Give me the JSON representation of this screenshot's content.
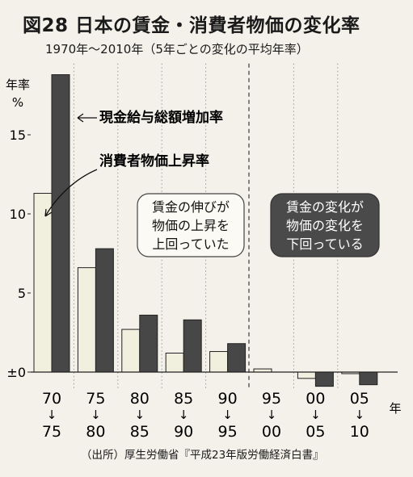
{
  "header": {
    "title": "図28 日本の賃金・消費者物価の変化率",
    "subtitle": "1970年〜2010年（5年ごとの変化の平均年率）"
  },
  "source": "（出所）厚生労働省『平成23年版労働経済白書』",
  "chart_data": {
    "type": "bar",
    "y_axis_title": [
      "年率",
      "%"
    ],
    "x_axis_unit": "年",
    "categories": [
      {
        "from": "70",
        "arrow": "↓",
        "to": "75"
      },
      {
        "from": "75",
        "arrow": "↓",
        "to": "80"
      },
      {
        "from": "80",
        "arrow": "↓",
        "to": "85"
      },
      {
        "from": "85",
        "arrow": "↓",
        "to": "90"
      },
      {
        "from": "90",
        "arrow": "↓",
        "to": "95"
      },
      {
        "from": "95",
        "arrow": "↓",
        "to": "00"
      },
      {
        "from": "00",
        "arrow": "↓",
        "to": "05"
      },
      {
        "from": "05",
        "arrow": "↓",
        "to": "10"
      }
    ],
    "series": [
      {
        "name": "消費者物価上昇率",
        "color": "#f1efde",
        "values": [
          11.3,
          6.6,
          2.7,
          1.2,
          1.3,
          0.2,
          -0.4,
          -0.1
        ]
      },
      {
        "name": "現金給与総額増加率",
        "color": "#474747",
        "values": [
          18.8,
          7.8,
          3.6,
          3.3,
          1.8,
          0.0,
          -0.9,
          -0.8
        ]
      }
    ],
    "y_ticks": [
      {
        "v": 0,
        "label": "±0"
      },
      {
        "v": 5,
        "label": "5"
      },
      {
        "v": 10,
        "label": "10"
      },
      {
        "v": 15,
        "label": "15"
      }
    ],
    "ylim": [
      -1.5,
      19.5
    ],
    "grid": "vertical-dotted",
    "annotations": {
      "left_box": [
        "賃金の伸びが",
        "物価の上昇を",
        "上回っていた"
      ],
      "right_box": [
        "賃金の変化が",
        "物価の変化を",
        "下回っている"
      ]
    }
  }
}
